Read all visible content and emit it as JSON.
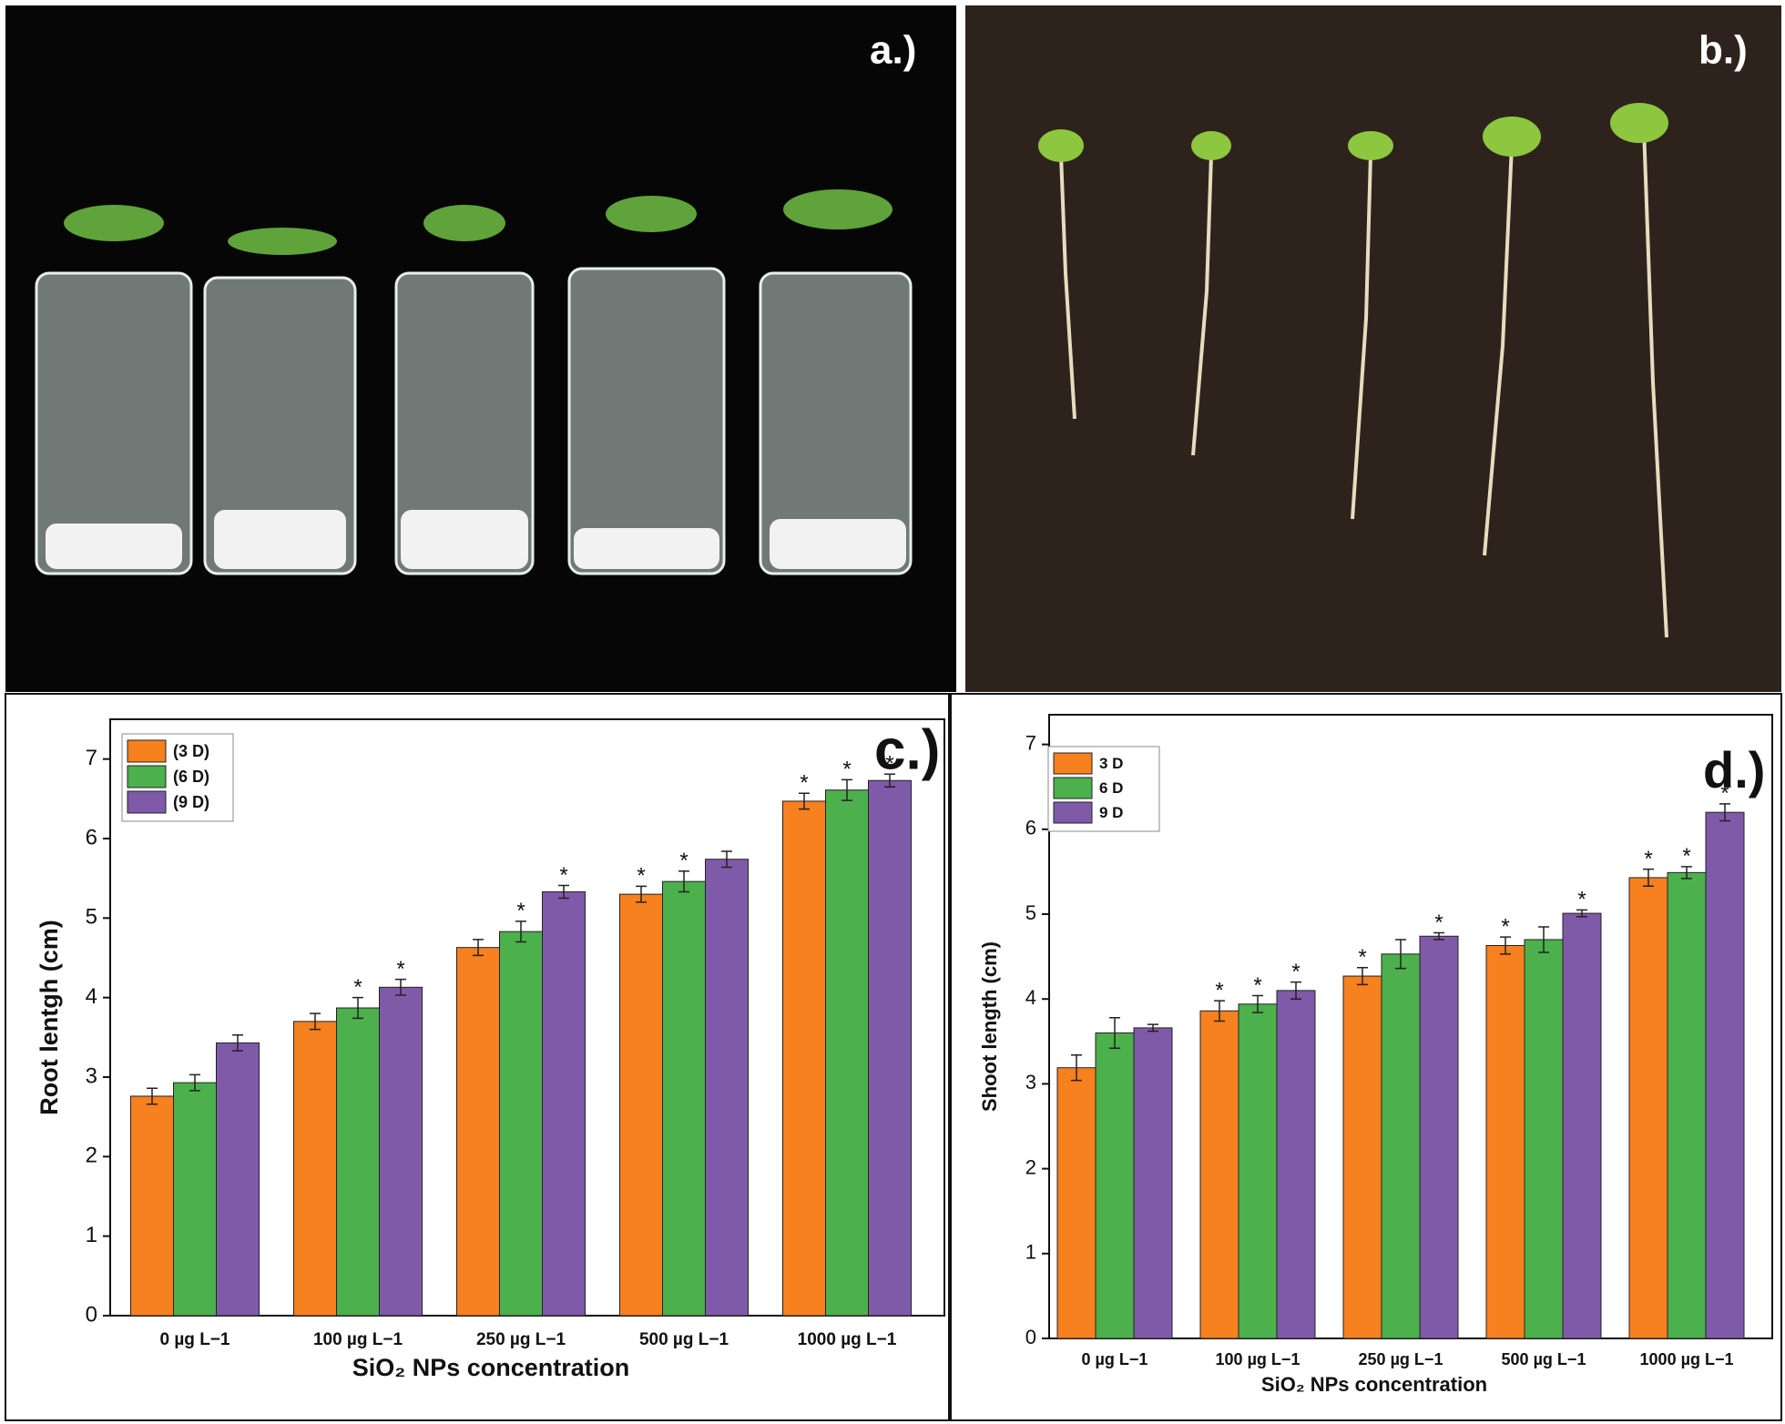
{
  "photos": [
    {
      "label": "a.)"
    },
    {
      "label": "b.)"
    }
  ],
  "chart_data": [
    {
      "type": "bar",
      "panel_label": "c.)",
      "y_label": "Root lentgh (cm)",
      "x_label": "SiO₂ NPs concentration",
      "categories": [
        "0 µg L−1",
        "100 µg L−1",
        "250 µg L−1",
        "500 µg L−1",
        "1000 µg L−1"
      ],
      "series": [
        {
          "name": "(3 D)",
          "color": "#f7801f",
          "values": [
            2.76,
            3.7,
            4.63,
            5.3,
            6.47
          ],
          "errors": [
            0.1,
            0.1,
            0.1,
            0.1,
            0.1
          ],
          "significance": [
            null,
            null,
            null,
            "*",
            "*"
          ]
        },
        {
          "name": "(6 D)",
          "color": "#4cb04c",
          "values": [
            2.93,
            3.87,
            4.83,
            5.46,
            6.61
          ],
          "errors": [
            0.1,
            0.13,
            0.13,
            0.13,
            0.13
          ],
          "significance": [
            null,
            "*",
            "*",
            "*",
            "*"
          ]
        },
        {
          "name": "(9 D)",
          "color": "#7f5aa8",
          "values": [
            3.43,
            4.13,
            5.33,
            5.74,
            6.73
          ],
          "errors": [
            0.1,
            0.1,
            0.08,
            0.1,
            0.08
          ],
          "significance": [
            null,
            "*",
            "*",
            null,
            "*"
          ]
        }
      ],
      "ylim": [
        0,
        7.5
      ],
      "yticks": [
        0,
        1,
        2,
        3,
        4,
        5,
        6,
        7
      ],
      "grid": false,
      "legend": "top-left"
    },
    {
      "type": "bar",
      "panel_label": "d.)",
      "y_label": "Shoot length (cm)",
      "x_label": "SiO₂ NPs concentration",
      "categories": [
        "0 µg L−1",
        "100 µg L−1",
        "250 µg L−1",
        "500 µg L−1",
        "1000 µg L−1"
      ],
      "series": [
        {
          "name": "3 D",
          "color": "#f7801f",
          "values": [
            3.19,
            3.86,
            4.27,
            4.63,
            5.43
          ],
          "errors": [
            0.15,
            0.12,
            0.1,
            0.1,
            0.1
          ],
          "significance": [
            null,
            "*",
            "*",
            "*",
            "*"
          ]
        },
        {
          "name": "6 D",
          "color": "#4cb04c",
          "values": [
            3.6,
            3.94,
            4.53,
            4.7,
            5.49
          ],
          "errors": [
            0.18,
            0.1,
            0.17,
            0.15,
            0.07
          ],
          "significance": [
            null,
            "*",
            null,
            null,
            "*"
          ]
        },
        {
          "name": "9 D",
          "color": "#7f5aa8",
          "values": [
            3.66,
            4.1,
            4.74,
            5.01,
            6.2
          ],
          "errors": [
            0.04,
            0.1,
            0.04,
            0.04,
            0.1
          ],
          "significance": [
            null,
            "*",
            "*",
            "*",
            "*"
          ]
        }
      ],
      "ylim": [
        0,
        7.35
      ],
      "yticks": [
        0,
        1,
        2,
        3,
        4,
        5,
        6,
        7
      ],
      "grid": false,
      "legend": "top-left"
    }
  ]
}
